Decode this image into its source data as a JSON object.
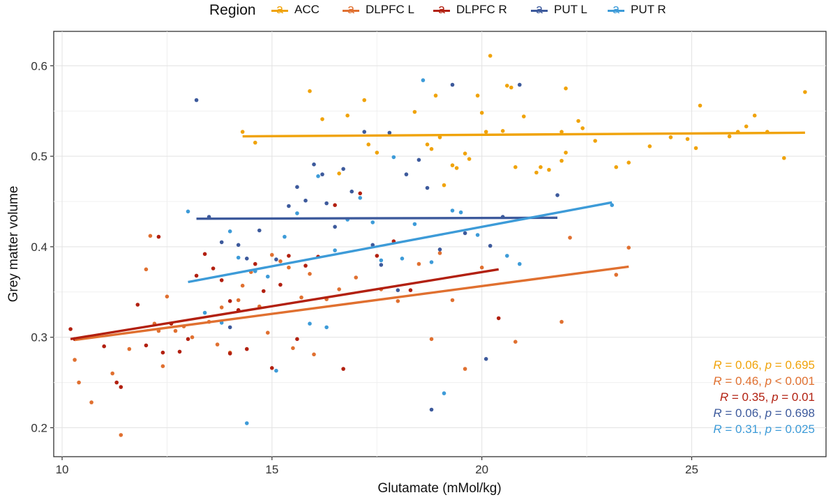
{
  "legend": {
    "title": "Region",
    "key_glyph": "a"
  },
  "chart_data": {
    "type": "scatter",
    "xlabel": "Glutamate (mMol/kg)",
    "ylabel": "Grey matter volume",
    "xlim": [
      9.8,
      28.2
    ],
    "ylim": [
      0.168,
      0.638
    ],
    "x_ticks": [
      10,
      15,
      20,
      25
    ],
    "y_ticks": [
      0.2,
      0.3,
      0.4,
      0.5,
      0.6
    ],
    "x_tick_labels": [
      "10",
      "15",
      "20",
      "25"
    ],
    "y_tick_labels": [
      "0.2",
      "0.3",
      "0.4",
      "0.5",
      "0.6"
    ],
    "grid": true,
    "legend_position": "top",
    "stats_position": "bottom-right",
    "series": [
      {
        "name": "ACC",
        "color": "#F0A30A",
        "fit": {
          "x": [
            14.3,
            27.7
          ],
          "y": [
            0.522,
            0.526
          ]
        },
        "stats": {
          "R": "0.06",
          "p_op": "=",
          "p": "0.695"
        },
        "points": [
          [
            14.3,
            0.527
          ],
          [
            14.6,
            0.515
          ],
          [
            15.9,
            0.572
          ],
          [
            16.2,
            0.541
          ],
          [
            16.6,
            0.481
          ],
          [
            16.8,
            0.545
          ],
          [
            17.2,
            0.562
          ],
          [
            17.3,
            0.513
          ],
          [
            17.5,
            0.504
          ],
          [
            18.4,
            0.549
          ],
          [
            18.7,
            0.513
          ],
          [
            18.9,
            0.567
          ],
          [
            18.8,
            0.508
          ],
          [
            19.0,
            0.521
          ],
          [
            19.1,
            0.468
          ],
          [
            19.3,
            0.49
          ],
          [
            19.4,
            0.487
          ],
          [
            19.6,
            0.503
          ],
          [
            19.7,
            0.497
          ],
          [
            19.9,
            0.567
          ],
          [
            20.0,
            0.548
          ],
          [
            20.1,
            0.527
          ],
          [
            20.2,
            0.611
          ],
          [
            20.5,
            0.528
          ],
          [
            20.6,
            0.578
          ],
          [
            20.7,
            0.576
          ],
          [
            20.8,
            0.488
          ],
          [
            21.0,
            0.544
          ],
          [
            21.3,
            0.482
          ],
          [
            21.4,
            0.488
          ],
          [
            21.6,
            0.485
          ],
          [
            21.9,
            0.527
          ],
          [
            21.9,
            0.495
          ],
          [
            22.0,
            0.504
          ],
          [
            22.0,
            0.575
          ],
          [
            22.3,
            0.539
          ],
          [
            22.4,
            0.531
          ],
          [
            22.7,
            0.517
          ],
          [
            23.2,
            0.488
          ],
          [
            23.5,
            0.493
          ],
          [
            24.0,
            0.511
          ],
          [
            24.5,
            0.521
          ],
          [
            24.9,
            0.519
          ],
          [
            25.1,
            0.509
          ],
          [
            25.2,
            0.556
          ],
          [
            25.9,
            0.522
          ],
          [
            26.1,
            0.527
          ],
          [
            26.3,
            0.533
          ],
          [
            26.5,
            0.545
          ],
          [
            26.8,
            0.527
          ],
          [
            27.2,
            0.498
          ],
          [
            27.7,
            0.571
          ]
        ]
      },
      {
        "name": "DLPFC L",
        "color": "#E07030",
        "fit": {
          "x": [
            10.3,
            23.5
          ],
          "y": [
            0.297,
            0.378
          ]
        },
        "stats": {
          "R": "0.46",
          "p_op": "<",
          "p": "0.001"
        },
        "points": [
          [
            10.3,
            0.275
          ],
          [
            10.4,
            0.25
          ],
          [
            10.7,
            0.228
          ],
          [
            11.2,
            0.26
          ],
          [
            11.4,
            0.192
          ],
          [
            11.6,
            0.287
          ],
          [
            12.0,
            0.375
          ],
          [
            12.1,
            0.412
          ],
          [
            12.2,
            0.315
          ],
          [
            12.3,
            0.307
          ],
          [
            12.4,
            0.268
          ],
          [
            12.5,
            0.345
          ],
          [
            12.7,
            0.307
          ],
          [
            12.9,
            0.312
          ],
          [
            13.1,
            0.3
          ],
          [
            13.5,
            0.317
          ],
          [
            13.7,
            0.292
          ],
          [
            13.8,
            0.333
          ],
          [
            14.0,
            0.283
          ],
          [
            14.2,
            0.341
          ],
          [
            14.3,
            0.357
          ],
          [
            14.5,
            0.372
          ],
          [
            14.7,
            0.334
          ],
          [
            14.9,
            0.305
          ],
          [
            15.0,
            0.391
          ],
          [
            15.2,
            0.384
          ],
          [
            15.4,
            0.377
          ],
          [
            15.5,
            0.288
          ],
          [
            15.7,
            0.344
          ],
          [
            15.9,
            0.37
          ],
          [
            16.0,
            0.281
          ],
          [
            16.3,
            0.342
          ],
          [
            16.6,
            0.353
          ],
          [
            17.0,
            0.366
          ],
          [
            17.6,
            0.353
          ],
          [
            18.0,
            0.34
          ],
          [
            18.5,
            0.381
          ],
          [
            18.8,
            0.298
          ],
          [
            19.0,
            0.393
          ],
          [
            19.3,
            0.341
          ],
          [
            19.6,
            0.265
          ],
          [
            20.0,
            0.377
          ],
          [
            20.8,
            0.295
          ],
          [
            21.9,
            0.317
          ],
          [
            22.1,
            0.41
          ],
          [
            23.2,
            0.369
          ],
          [
            23.5,
            0.399
          ]
        ]
      },
      {
        "name": "DLPFC R",
        "color": "#B22010",
        "fit": {
          "x": [
            10.2,
            20.4
          ],
          "y": [
            0.298,
            0.375
          ]
        },
        "stats": {
          "R": "0.35",
          "p_op": "=",
          "p": "0.01"
        },
        "points": [
          [
            10.2,
            0.309
          ],
          [
            10.3,
            0.298
          ],
          [
            11.0,
            0.29
          ],
          [
            11.3,
            0.25
          ],
          [
            11.4,
            0.245
          ],
          [
            11.8,
            0.336
          ],
          [
            12.0,
            0.291
          ],
          [
            12.3,
            0.411
          ],
          [
            12.4,
            0.283
          ],
          [
            12.6,
            0.315
          ],
          [
            12.8,
            0.284
          ],
          [
            13.0,
            0.298
          ],
          [
            13.2,
            0.368
          ],
          [
            13.4,
            0.392
          ],
          [
            13.6,
            0.376
          ],
          [
            13.8,
            0.363
          ],
          [
            14.0,
            0.34
          ],
          [
            14.0,
            0.282
          ],
          [
            14.2,
            0.33
          ],
          [
            14.4,
            0.287
          ],
          [
            14.6,
            0.381
          ],
          [
            14.8,
            0.351
          ],
          [
            15.0,
            0.266
          ],
          [
            15.2,
            0.358
          ],
          [
            15.4,
            0.39
          ],
          [
            15.6,
            0.298
          ],
          [
            15.8,
            0.379
          ],
          [
            16.1,
            0.389
          ],
          [
            16.5,
            0.446
          ],
          [
            16.7,
            0.265
          ],
          [
            17.1,
            0.459
          ],
          [
            17.5,
            0.39
          ],
          [
            17.9,
            0.406
          ],
          [
            18.3,
            0.352
          ],
          [
            20.4,
            0.321
          ]
        ]
      },
      {
        "name": "PUT L",
        "color": "#3D5A9C",
        "fit": {
          "x": [
            13.2,
            21.8
          ],
          "y": [
            0.431,
            0.432
          ]
        },
        "stats": {
          "R": "0.06",
          "p_op": "=",
          "p": "0.698"
        },
        "points": [
          [
            13.2,
            0.562
          ],
          [
            13.5,
            0.433
          ],
          [
            13.8,
            0.405
          ],
          [
            14.0,
            0.311
          ],
          [
            14.2,
            0.402
          ],
          [
            14.4,
            0.387
          ],
          [
            14.7,
            0.418
          ],
          [
            15.1,
            0.386
          ],
          [
            15.4,
            0.445
          ],
          [
            15.6,
            0.466
          ],
          [
            15.8,
            0.451
          ],
          [
            16.0,
            0.491
          ],
          [
            16.2,
            0.48
          ],
          [
            16.3,
            0.448
          ],
          [
            16.5,
            0.422
          ],
          [
            16.7,
            0.486
          ],
          [
            16.9,
            0.461
          ],
          [
            17.2,
            0.527
          ],
          [
            17.4,
            0.402
          ],
          [
            17.6,
            0.38
          ],
          [
            17.8,
            0.526
          ],
          [
            18.0,
            0.352
          ],
          [
            18.2,
            0.48
          ],
          [
            18.5,
            0.496
          ],
          [
            18.7,
            0.465
          ],
          [
            18.8,
            0.22
          ],
          [
            19.0,
            0.397
          ],
          [
            19.3,
            0.579
          ],
          [
            19.6,
            0.415
          ],
          [
            20.1,
            0.276
          ],
          [
            20.2,
            0.401
          ],
          [
            20.5,
            0.433
          ],
          [
            20.9,
            0.579
          ],
          [
            21.8,
            0.457
          ]
        ]
      },
      {
        "name": "PUT R",
        "color": "#3D9BD8",
        "fit": {
          "x": [
            13.0,
            23.1
          ],
          "y": [
            0.361,
            0.449
          ]
        },
        "stats": {
          "R": "0.31",
          "p_op": "=",
          "p": "0.025"
        },
        "points": [
          [
            13.0,
            0.439
          ],
          [
            13.4,
            0.327
          ],
          [
            13.8,
            0.316
          ],
          [
            14.0,
            0.417
          ],
          [
            14.2,
            0.388
          ],
          [
            14.4,
            0.205
          ],
          [
            14.6,
            0.373
          ],
          [
            14.9,
            0.367
          ],
          [
            15.1,
            0.263
          ],
          [
            15.3,
            0.411
          ],
          [
            15.6,
            0.437
          ],
          [
            15.9,
            0.315
          ],
          [
            16.1,
            0.478
          ],
          [
            16.3,
            0.311
          ],
          [
            16.5,
            0.396
          ],
          [
            16.8,
            0.43
          ],
          [
            17.1,
            0.454
          ],
          [
            17.4,
            0.427
          ],
          [
            17.6,
            0.385
          ],
          [
            17.9,
            0.499
          ],
          [
            18.1,
            0.387
          ],
          [
            18.4,
            0.425
          ],
          [
            18.6,
            0.584
          ],
          [
            18.8,
            0.383
          ],
          [
            19.1,
            0.238
          ],
          [
            19.3,
            0.44
          ],
          [
            19.5,
            0.438
          ],
          [
            19.9,
            0.413
          ],
          [
            20.6,
            0.39
          ],
          [
            20.9,
            0.381
          ],
          [
            23.1,
            0.446
          ]
        ]
      }
    ]
  }
}
